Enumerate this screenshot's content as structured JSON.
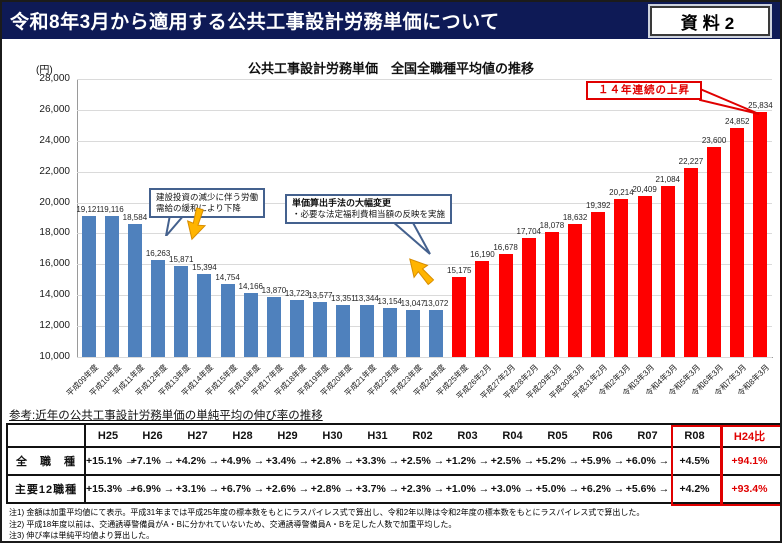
{
  "header": {
    "title": "令和8年3月から適用する公共工事設計労務単価について",
    "doc_label": "資料2"
  },
  "chart_data": {
    "type": "bar",
    "title": "公共工事設計労務単価　全国全職種平均値の推移",
    "unit_label": "(円)",
    "ylim": [
      10000,
      28000
    ],
    "ytick_step": 2000,
    "grid": true,
    "split_index": 16,
    "categories": [
      "平成09年度",
      "平成10年度",
      "平成11年度",
      "平成12年度",
      "平成13年度",
      "平成14年度",
      "平成15年度",
      "平成16年度",
      "平成17年度",
      "平成18年度",
      "平成19年度",
      "平成20年度",
      "平成21年度",
      "平成22年度",
      "平成23年度",
      "平成24年度",
      "平成25年度",
      "平成26年2月",
      "平成27年2月",
      "平成28年2月",
      "平成29年3月",
      "平成30年3月",
      "平成31年2月",
      "令和2年3月",
      "令和3年3月",
      "令和4年3月",
      "令和5年3月",
      "令和6年3月",
      "令和7年3月",
      "令和8年3月"
    ],
    "values": [
      19121,
      19116,
      18584,
      16263,
      15871,
      15394,
      14754,
      14166,
      13870,
      13723,
      13577,
      13351,
      13344,
      13154,
      13047,
      13072,
      15175,
      16190,
      16678,
      17704,
      18078,
      18632,
      19392,
      20214,
      20409,
      21084,
      22227,
      23600,
      24852,
      25834
    ]
  },
  "annotations": {
    "decline": {
      "line1": "建設投資の減少に伴う労働",
      "line2": "需給の緩和により下降"
    },
    "method_change": {
      "line1": "単価算出手法の大幅変更",
      "line2": "・必要な法定福利費相当額の反映を実施"
    },
    "streak": "１４年連続の上昇"
  },
  "reference_heading": "参考:近年の公共工事設計労務単価の単純平均の伸び率の推移",
  "table": {
    "columns": [
      "H25",
      "H26",
      "H27",
      "H28",
      "H29",
      "H30",
      "H31",
      "R02",
      "R03",
      "R04",
      "R05",
      "R06",
      "R07",
      "R08",
      "H24比"
    ],
    "rows": [
      {
        "label": "全　職　種",
        "values": [
          "+15.1%",
          "+7.1%",
          "+4.2%",
          "+4.9%",
          "+3.4%",
          "+2.8%",
          "+3.3%",
          "+2.5%",
          "+1.2%",
          "+2.5%",
          "+5.2%",
          "+5.9%",
          "+6.0%",
          "+4.5%"
        ],
        "h24_ratio": "+94.1%"
      },
      {
        "label": "主要12職種",
        "values": [
          "+15.3%",
          "+6.9%",
          "+3.1%",
          "+6.7%",
          "+2.6%",
          "+2.8%",
          "+3.7%",
          "+2.3%",
          "+1.0%",
          "+3.0%",
          "+5.0%",
          "+6.2%",
          "+5.6%",
          "+4.2%"
        ],
        "h24_ratio": "+93.4%"
      }
    ]
  },
  "footnotes": [
    "注1) 金額は加重平均値にて表示。平成31年までは平成25年度の標本数をもとにラスパイレス式で算出し、令和2年以降は令和2年度の標本数をもとにラスパイレス式で算出した。",
    "注2) 平成18年度以前は、交通誘導警備員がA・Bに分かれていないため、交通誘導警備員A・Bを足した人数で加重平均した。",
    "注3) 伸び率は単純平均値より算出した。"
  ],
  "colors": {
    "header_bg": "#0e1a56",
    "bar_past": "#4f81bd",
    "bar_recent": "#fe0000",
    "accent_red": "#e00000",
    "annotation_border": "#44618e",
    "arrow_orange": "#ffb400"
  }
}
